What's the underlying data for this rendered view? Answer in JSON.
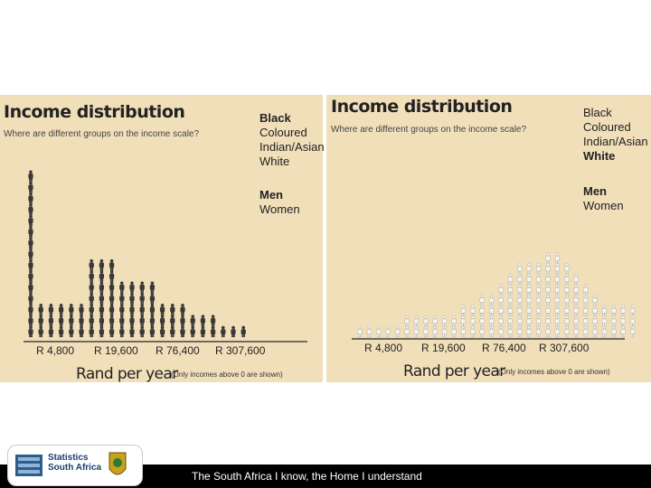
{
  "panels": {
    "left": {
      "title": "Income distribution",
      "subtitle": "Where are different groups on the income scale?",
      "legend_groups": [
        "Black",
        "Coloured",
        "Indian/Asian",
        "White"
      ],
      "legend_gender": [
        "Men",
        "Women"
      ],
      "highlight": "Black"
    },
    "right": {
      "title": "Income distribution",
      "subtitle": "Where are different groups on the income scale?",
      "legend_groups": [
        "Black",
        "Coloured",
        "Indian/Asian",
        "White"
      ],
      "legend_gender": [
        "Men",
        "Women"
      ],
      "highlight": "White"
    }
  },
  "chart_data": [
    {
      "type": "bar",
      "title": "Income distribution",
      "subtitle": "Where are different groups on the income scale?",
      "group": "Black",
      "xlabel": "Rand per year",
      "xlabel_note": "(Only incomes above 0 are shown)",
      "tick_labels": [
        "R 4,800",
        "R 19,600",
        "R 76,400",
        "R 307,600"
      ],
      "values": [
        15,
        3,
        3,
        3,
        3,
        3,
        7,
        7,
        7,
        5,
        5,
        5,
        5,
        3,
        3,
        3,
        2,
        2,
        2,
        1,
        1,
        1
      ],
      "color": "#3a3a3a"
    },
    {
      "type": "bar",
      "title": "Income distribution",
      "subtitle": "Where are different groups on the income scale?",
      "group": "White",
      "xlabel": "Rand per year",
      "xlabel_note": "(Only incomes above 0 are shown)",
      "tick_labels": [
        "R 4,800",
        "R 19,600",
        "R 76,400",
        "R 307,600"
      ],
      "values": [
        1,
        1,
        1,
        1,
        1,
        2,
        2,
        2,
        2,
        2,
        2,
        3,
        3,
        4,
        4,
        5,
        6,
        7,
        7,
        7,
        8,
        8,
        7,
        6,
        5,
        4,
        3,
        3,
        3,
        3
      ],
      "color": "#f7f7f2"
    }
  ],
  "footer": {
    "tagline": "The South Africa I know, the Home I understand",
    "logo_line1": "Statistics",
    "logo_line2": "South Africa"
  }
}
